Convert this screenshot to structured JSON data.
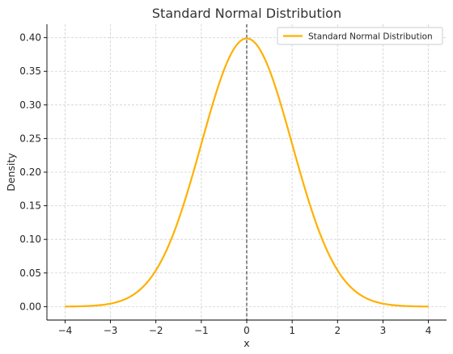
{
  "chart_data": {
    "type": "line",
    "title": "Standard Normal Distribution",
    "xlabel": "x",
    "ylabel": "Density",
    "xlim": [
      -4.4,
      4.4
    ],
    "ylim": [
      -0.02,
      0.42
    ],
    "xticks": [
      -4,
      -3,
      -2,
      -1,
      0,
      1,
      2,
      3,
      4
    ],
    "xtick_labels": [
      "−4",
      "−3",
      "−2",
      "−1",
      "0",
      "1",
      "2",
      "3",
      "4"
    ],
    "yticks": [
      0.0,
      0.05,
      0.1,
      0.15,
      0.2,
      0.25,
      0.3,
      0.35,
      0.4
    ],
    "ytick_labels": [
      "0.00",
      "0.05",
      "0.10",
      "0.15",
      "0.20",
      "0.25",
      "0.30",
      "0.35",
      "0.40"
    ],
    "grid": true,
    "legend": {
      "position": "top-right",
      "entries": [
        "Standard Normal Distribution"
      ]
    },
    "series": [
      {
        "name": "Standard Normal Distribution",
        "color": "#FFB000",
        "x": [
          -4.0,
          -3.75,
          -3.5,
          -3.25,
          -3.0,
          -2.75,
          -2.5,
          -2.25,
          -2.0,
          -1.75,
          -1.5,
          -1.25,
          -1.0,
          -0.75,
          -0.5,
          -0.25,
          0.0,
          0.25,
          0.5,
          0.75,
          1.0,
          1.25,
          1.5,
          1.75,
          2.0,
          2.25,
          2.5,
          2.75,
          3.0,
          3.25,
          3.5,
          3.75,
          4.0
        ],
        "y": [
          0.0001,
          0.0004,
          0.0009,
          0.002,
          0.0044,
          0.0091,
          0.0175,
          0.0317,
          0.054,
          0.0863,
          0.1295,
          0.1826,
          0.242,
          0.3011,
          0.3521,
          0.3867,
          0.3989,
          0.3867,
          0.3521,
          0.3011,
          0.242,
          0.1826,
          0.1295,
          0.0863,
          0.054,
          0.0317,
          0.0175,
          0.0091,
          0.0044,
          0.002,
          0.0009,
          0.0004,
          0.0001
        ]
      }
    ],
    "vline": {
      "x": 0,
      "style": "dashed",
      "color": "#333333"
    }
  }
}
